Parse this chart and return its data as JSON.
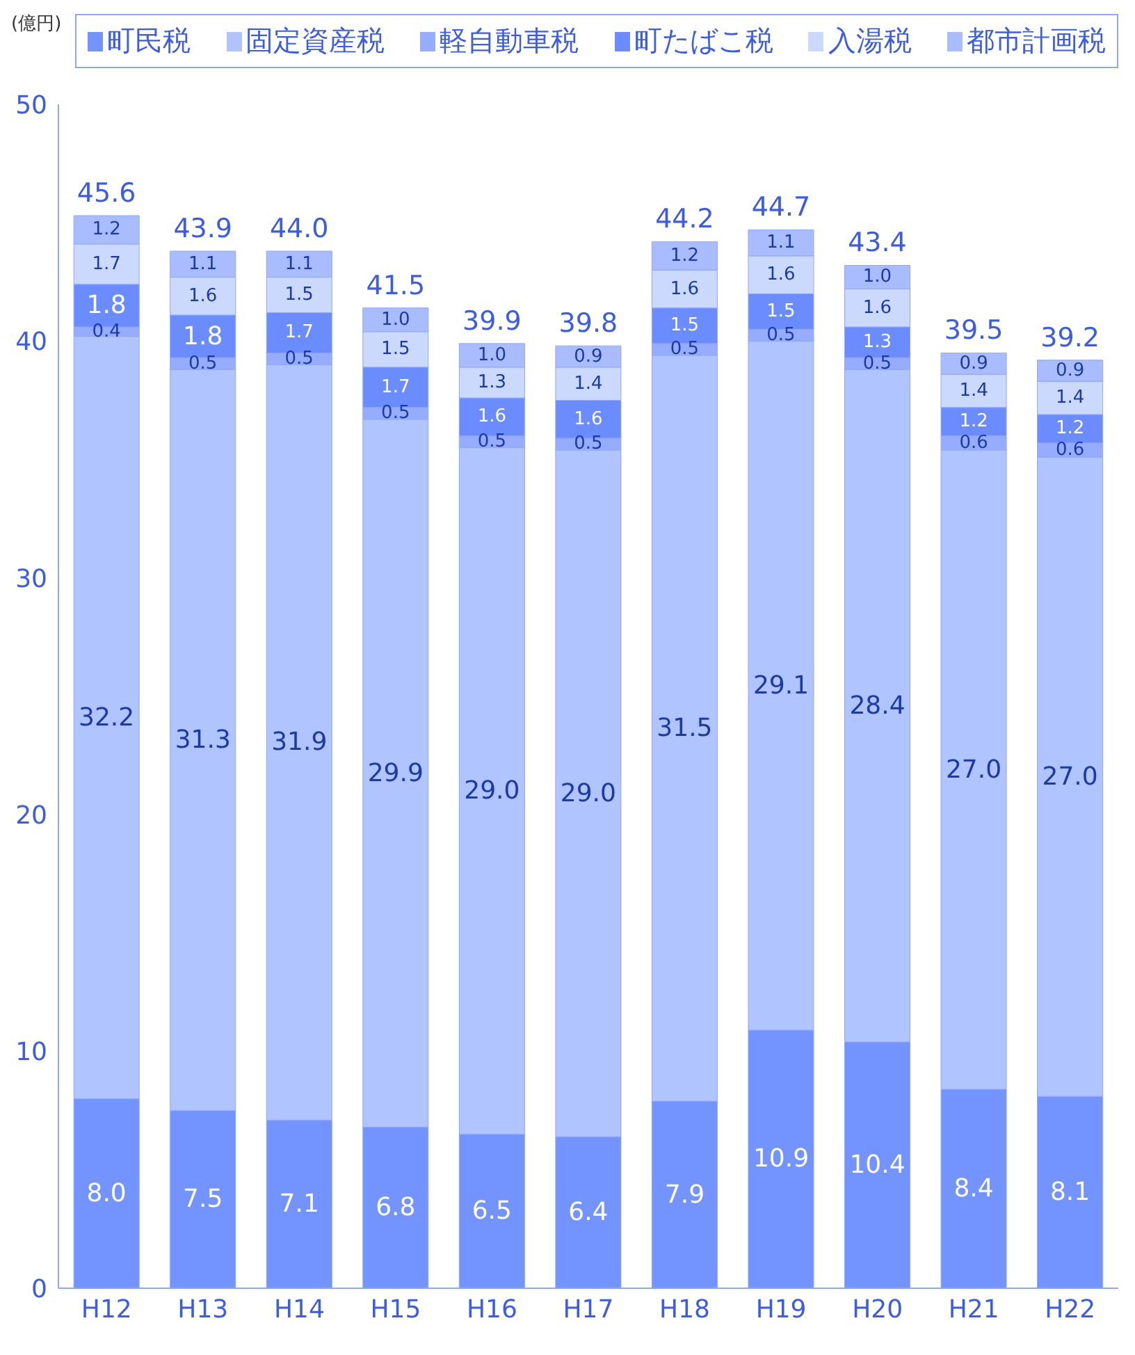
{
  "chart_data": {
    "type": "bar",
    "stacked": true,
    "ylabel": "(億円)",
    "categories": [
      "H12",
      "H13",
      "H14",
      "H15",
      "H16",
      "H17",
      "H18",
      "H19",
      "H20",
      "H21",
      "H22"
    ],
    "series": [
      {
        "name": "町民税",
        "color": "#7393ff",
        "values": [
          8.0,
          7.5,
          7.1,
          6.8,
          6.5,
          6.4,
          7.9,
          10.9,
          10.4,
          8.4,
          8.1
        ],
        "value_labels": [
          "8.0",
          "7.5",
          "7.1",
          "6.8",
          "6.5",
          "6.4",
          "7.9",
          "10.9",
          "10.4",
          "8.4",
          "8.1"
        ]
      },
      {
        "name": "固定資産税",
        "color": "#b0c4ff",
        "values": [
          32.2,
          31.3,
          31.9,
          29.9,
          29.0,
          29.0,
          31.5,
          29.1,
          28.4,
          27.0,
          27.0
        ],
        "value_labels": [
          "32.2",
          "31.3",
          "31.9",
          "29.9",
          "29.0",
          "29.0",
          "31.5",
          "29.1",
          "28.4",
          "27.0",
          "27.0"
        ]
      },
      {
        "name": "軽自動車税",
        "color": "#96acff",
        "values": [
          0.4,
          0.5,
          0.5,
          0.5,
          0.5,
          0.5,
          0.5,
          0.5,
          0.5,
          0.6,
          0.6
        ],
        "value_labels": [
          "0.4",
          "0.5",
          "0.5",
          "0.5",
          "0.5",
          "0.5",
          "0.5",
          "0.5",
          "0.5",
          "0.6",
          "0.6"
        ]
      },
      {
        "name": "町たばこ税",
        "color": "#6a8cff",
        "values": [
          1.8,
          1.8,
          1.7,
          1.7,
          1.6,
          1.6,
          1.5,
          1.5,
          1.3,
          1.2,
          1.2
        ],
        "value_labels": [
          "1.8",
          "1.8",
          "1.7",
          "1.7",
          "1.6",
          "1.6",
          "1.5",
          "1.5",
          "1.3",
          "1.2",
          "1.2"
        ]
      },
      {
        "name": "入湯税",
        "color": "#ccd9ff",
        "values": [
          1.7,
          1.6,
          1.5,
          1.5,
          1.3,
          1.4,
          1.6,
          1.6,
          1.6,
          1.4,
          1.4
        ],
        "value_labels": [
          "1.7",
          "1.6",
          "1.5",
          "1.5",
          "1.3",
          "1.4",
          "1.6",
          "1.6",
          "1.6",
          "1.4",
          "1.4"
        ]
      },
      {
        "name": "都市計画税",
        "color": "#a8bcff",
        "values": [
          1.2,
          1.1,
          1.1,
          1.0,
          1.0,
          0.9,
          1.2,
          1.1,
          1.0,
          0.9,
          0.9
        ],
        "value_labels": [
          "1.2",
          "1.1",
          "1.1",
          "1.0",
          "1.0",
          "0.9",
          "1.2",
          "1.1",
          "1.0",
          "0.9",
          "0.9"
        ]
      }
    ],
    "totals": [
      "45.6",
      "43.9",
      "44.0",
      "41.5",
      "39.9",
      "39.8",
      "44.2",
      "44.7",
      "43.4",
      "39.5",
      "39.2"
    ],
    "ylim": [
      0,
      50
    ],
    "yticks": [
      0,
      10,
      20,
      30,
      40,
      50
    ],
    "legend": "top"
  }
}
